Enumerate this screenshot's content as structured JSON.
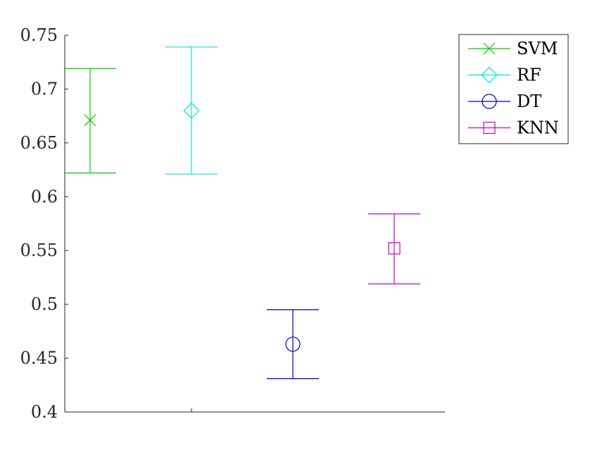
{
  "chart_data": {
    "type": "errorbar",
    "ylim": [
      0.4,
      0.75
    ],
    "yticks": [
      "0.4",
      "0.45",
      "0.5",
      "0.55",
      "0.6",
      "0.65",
      "0.7",
      "0.75"
    ],
    "ytick_values": [
      0.4,
      0.45,
      0.5,
      0.55,
      0.6,
      0.65,
      0.7,
      0.75
    ],
    "xlim": [
      0.8,
      3.8
    ],
    "xtick_values": [
      1.8
    ],
    "grid": false,
    "legend_position": "top-right, outside plot area",
    "series": [
      {
        "name": "SVM",
        "x": 1,
        "y": 0.671,
        "lower": 0.622,
        "upper": 0.719,
        "color": "#00cc00",
        "marker": "x"
      },
      {
        "name": "RF",
        "x": 1.8,
        "y": 0.68,
        "lower": 0.621,
        "upper": 0.739,
        "color": "#00e5e5",
        "marker": "diamond"
      },
      {
        "name": "DT",
        "x": 2.6,
        "y": 0.463,
        "lower": 0.431,
        "upper": 0.495,
        "color": "#0000b3",
        "marker": "circle"
      },
      {
        "name": "KNN",
        "x": 3.4,
        "y": 0.552,
        "lower": 0.519,
        "upper": 0.584,
        "color": "#cc00cc",
        "marker": "square"
      }
    ]
  }
}
